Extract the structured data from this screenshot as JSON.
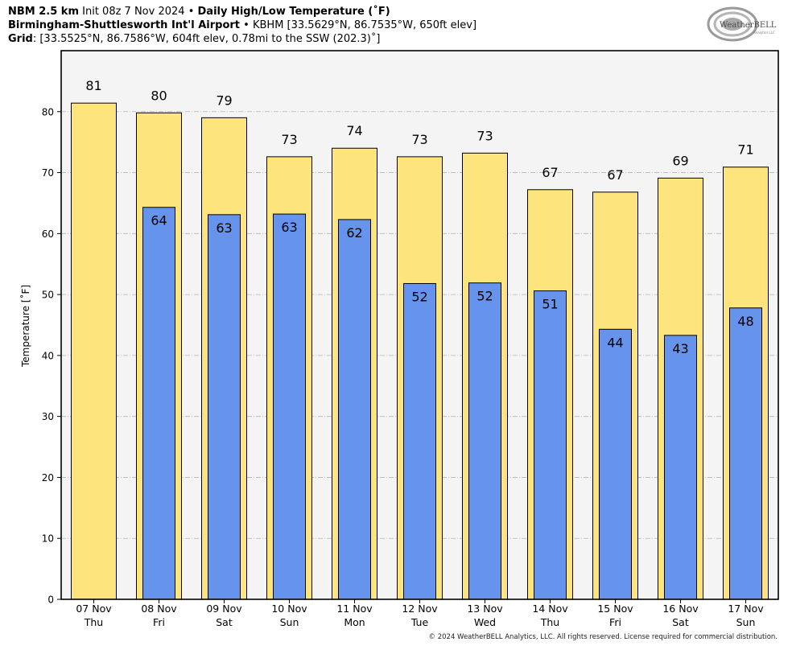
{
  "header": {
    "line1_bold1": "NBM 2.5 km",
    "line1_mid": "Init 08z 7 Nov 2024",
    "line1_sep": "•",
    "line1_bold2": "Daily High/Low Temperature (˚F)",
    "line2_bold": "Birmingham-Shuttlesworth Int'l Airport",
    "line2_sep": "•",
    "line2_rest": "KBHM [33.5629°N, 86.7535°W, 650ft elev]",
    "line3_bold": "Grid",
    "line3_rest": ": [33.5525°N, 86.7586°W, 604ft elev, 0.78mi to the SSW (202.3)˚]"
  },
  "logo": {
    "text": "WeatherBELL",
    "subtext": "Analytics LLC"
  },
  "footer": "© 2024 WeatherBELL Analytics, LLC. All rights reserved. License required for commercial distribution.",
  "colors": {
    "high": "#fee47c",
    "low": "#6693eb",
    "plot_bg": "#f4f4f4",
    "grid": "#b3b3b3"
  },
  "chart_data": {
    "type": "bar",
    "title": "Daily High/Low Temperature (˚F)",
    "ylabel": "Temperature [˚F]",
    "ylim": [
      0,
      90
    ],
    "yticks": [
      0,
      10,
      20,
      30,
      40,
      50,
      60,
      70,
      80
    ],
    "grid": true,
    "categories": [
      {
        "date": "07 Nov",
        "day": "Thu"
      },
      {
        "date": "08 Nov",
        "day": "Fri"
      },
      {
        "date": "09 Nov",
        "day": "Sat"
      },
      {
        "date": "10 Nov",
        "day": "Sun"
      },
      {
        "date": "11 Nov",
        "day": "Mon"
      },
      {
        "date": "12 Nov",
        "day": "Tue"
      },
      {
        "date": "13 Nov",
        "day": "Wed"
      },
      {
        "date": "14 Nov",
        "day": "Thu"
      },
      {
        "date": "15 Nov",
        "day": "Fri"
      },
      {
        "date": "16 Nov",
        "day": "Sat"
      },
      {
        "date": "17 Nov",
        "day": "Sun"
      }
    ],
    "series": [
      {
        "name": "High",
        "values": [
          81.4,
          79.8,
          79.0,
          72.6,
          74.0,
          72.6,
          73.2,
          67.2,
          66.8,
          69.1,
          70.9
        ]
      },
      {
        "name": "Low",
        "values": [
          null,
          64.3,
          63.1,
          63.2,
          62.3,
          51.8,
          51.9,
          50.6,
          44.3,
          43.3,
          47.8
        ]
      }
    ],
    "labels": {
      "High": [
        "81",
        "80",
        "79",
        "73",
        "74",
        "73",
        "73",
        "67",
        "67",
        "69",
        "71"
      ],
      "Low": [
        null,
        "64",
        "63",
        "63",
        "62",
        "52",
        "52",
        "51",
        "44",
        "43",
        "48"
      ]
    }
  }
}
